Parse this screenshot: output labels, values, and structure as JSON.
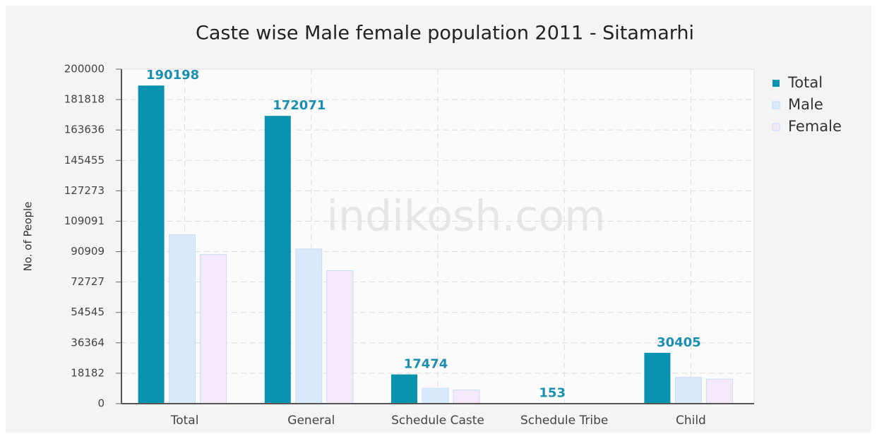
{
  "chart_data": {
    "type": "bar",
    "title": "Caste wise Male female population 2011 - Sitamarhi",
    "y_label": "No. of People",
    "watermark": "indikosh.com",
    "categories": [
      "Total",
      "General",
      "Schedule Caste",
      "Schedule Tribe",
      "Child"
    ],
    "series": [
      {
        "name": "Total",
        "color": "#0a93b1",
        "values": [
          190198,
          172071,
          17474,
          153,
          30405
        ]
      },
      {
        "name": "Male",
        "color": "#d8eafb",
        "values": [
          101000,
          92500,
          9200,
          80,
          15700
        ]
      },
      {
        "name": "Female",
        "color": "#f4e8fb",
        "values": [
          89198,
          79571,
          8274,
          73,
          14705
        ]
      }
    ],
    "ylim": [
      0,
      200000
    ],
    "yticks": [
      0,
      18182,
      36364,
      54545,
      72727,
      90909,
      109091,
      127273,
      145455,
      163636,
      181818,
      200000
    ],
    "grid": true,
    "legend": "top-right"
  }
}
